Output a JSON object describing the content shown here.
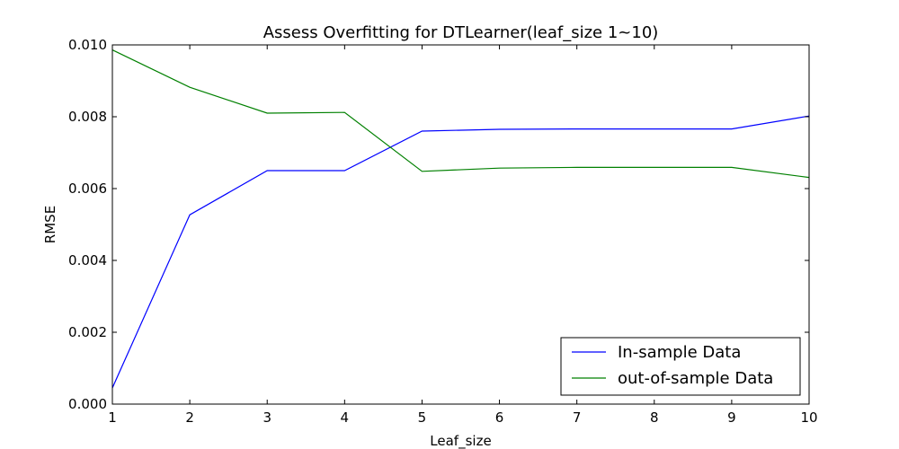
{
  "chart_data": {
    "type": "line",
    "title": "Assess Overfitting for DTLearner(leaf_size 1~10)",
    "xlabel": "Leaf_size",
    "ylabel": "RMSE",
    "xlim": [
      1,
      10
    ],
    "ylim": [
      0.0,
      0.01
    ],
    "x": [
      1,
      2,
      3,
      4,
      5,
      6,
      7,
      8,
      9,
      10
    ],
    "xticks": [
      "1",
      "2",
      "3",
      "4",
      "5",
      "6",
      "7",
      "8",
      "9",
      "10"
    ],
    "yticks": [
      {
        "value": 0.0,
        "label": "0.000"
      },
      {
        "value": 0.002,
        "label": "0.002"
      },
      {
        "value": 0.004,
        "label": "0.004"
      },
      {
        "value": 0.006,
        "label": "0.006"
      },
      {
        "value": 0.008,
        "label": "0.008"
      },
      {
        "value": 0.01,
        "label": "0.010"
      }
    ],
    "grid": false,
    "legend_position": "lower-right",
    "series": [
      {
        "name": "In-sample Data",
        "color": "#0000ff",
        "values": [
          0.00045,
          0.00527,
          0.0065,
          0.0065,
          0.0076,
          0.00765,
          0.00766,
          0.00766,
          0.00766,
          0.00802
        ]
      },
      {
        "name": "out-of-sample Data",
        "color": "#008000",
        "values": [
          0.00986,
          0.00882,
          0.0081,
          0.00812,
          0.00648,
          0.00657,
          0.00659,
          0.00659,
          0.00659,
          0.00631
        ]
      }
    ]
  }
}
